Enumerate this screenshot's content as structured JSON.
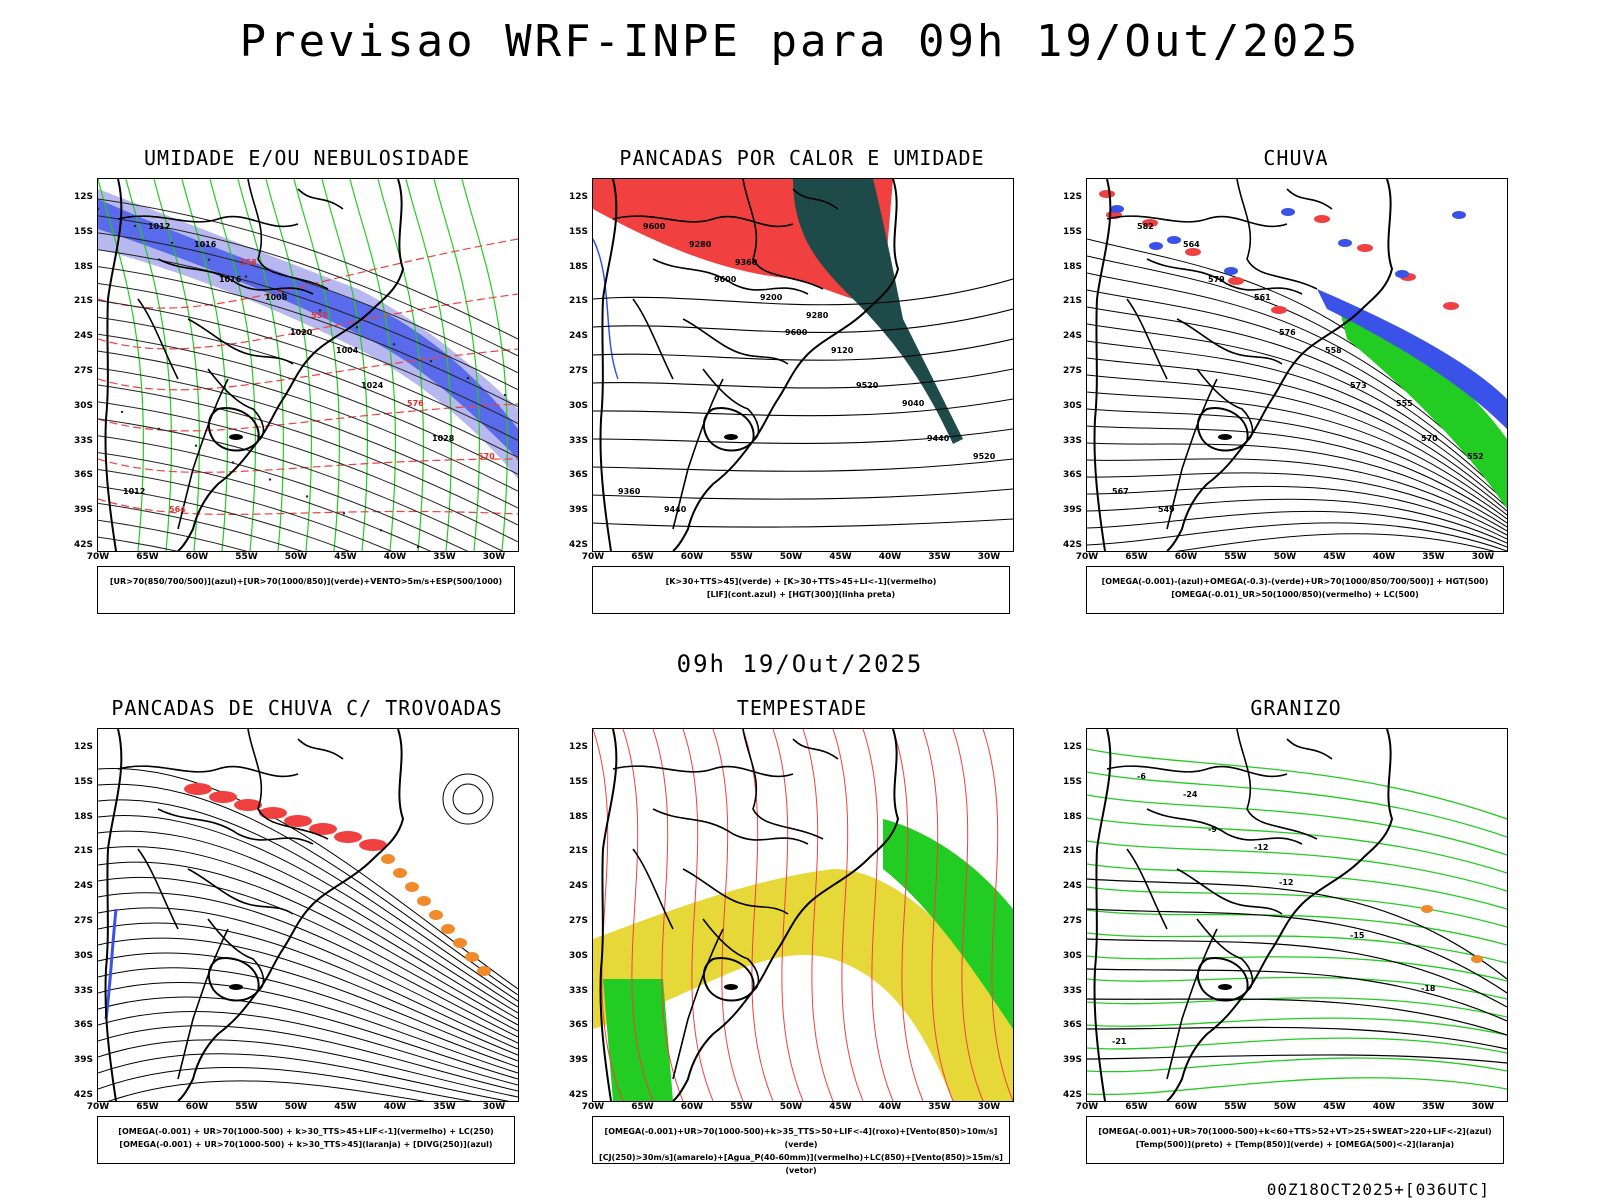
{
  "title": "Previsao WRF-INPE  para 09h 19/Out/2025",
  "mid_title": "09h 19/Out/2025",
  "footer": "00Z18OCT2025+[036UTC]",
  "lat_ticks": [
    "12S",
    "15S",
    "18S",
    "21S",
    "24S",
    "27S",
    "30S",
    "33S",
    "36S",
    "39S",
    "42S"
  ],
  "lon_ticks": [
    "70W",
    "65W",
    "60W",
    "55W",
    "50W",
    "45W",
    "40W",
    "35W",
    "30W"
  ],
  "colors": {
    "blue": "#3a52e8",
    "lavender": "#b8b8f0",
    "green": "#22cc22",
    "red": "#f04040",
    "orange": "#f08a2a",
    "yellow": "#e6d838",
    "darkteal": "#1e4a4a"
  },
  "panels": [
    {
      "title": "UMIDADE E/OU NEBULOSIDADE",
      "legend": [
        "[UR>70(850/700/500)](azul)+[UR>70(1000/850)](verde)+VENTO>5m/s+ESP(500/1000)"
      ],
      "contour_labels": [
        "1012",
        "1016",
        "1020",
        "1024",
        "1028",
        "1012",
        "1016",
        "1008",
        "1004",
        "576",
        "570",
        "564",
        "558",
        "552"
      ]
    },
    {
      "title": "PANCADAS POR CALOR E UMIDADE",
      "legend": [
        "[K>30+TTS>45](verde) + [K>30+TTS>45+LI<-1](vermelho)",
        "[LIF](cont.azul) + [HGT(300)](linha preta)"
      ],
      "contour_labels": [
        "9600",
        "9600",
        "9600",
        "9520",
        "9440",
        "9360",
        "9280",
        "9200",
        "9120",
        "9040",
        "9520",
        "9440",
        "9360",
        "9280"
      ]
    },
    {
      "title": "CHUVA",
      "legend": [
        "[OMEGA(-0.001)-(azul)+OMEGA(-0.3)-(verde)+UR>70(1000/850/700/500)] + HGT(500)",
        "[OMEGA(-0.01)_UR>50(1000/850)(vermelho) + LC(500)"
      ],
      "contour_labels": [
        "582",
        "579",
        "576",
        "573",
        "570",
        "567",
        "564",
        "561",
        "558",
        "555",
        "552",
        "549"
      ]
    },
    {
      "title": "PANCADAS DE CHUVA C/ TROVOADAS",
      "legend": [
        "[OMEGA(-0.001) + UR>70(1000-500) + k>30_TTS>45+LIF<-1](vermelho) + LC(250)",
        "[OMEGA(-0.001) + UR>70(1000-500) + k>30_TTS>45](laranja) + [DIVG(250)](azul)"
      ],
      "contour_labels": []
    },
    {
      "title": "TEMPESTADE",
      "legend": [
        "[OMEGA(-0.001)+UR>70(1000-500)+k>35_TTS>50+LIF<-4](roxo)+[Vento(850)>10m/s](verde)",
        "[CJ(250)>30m/s](amarelo)+[Agua_P(40-60mm)](vermelho)+LC(850)+[Vento(850)>15m/s](vetor)"
      ],
      "contour_labels": []
    },
    {
      "title": "GRANIZO",
      "legend": [
        "[OMEGA(-0.001)+UR>70(1000-500)+k<60+TTS>52+VT>25+SWEAT>220+LIF<-2](azul)",
        "[Temp(500)](preto) + [Temp(850)](verde) + [OMEGA(500)<-2](laranja)"
      ],
      "contour_labels": [
        "-6",
        "-9",
        "-12",
        "-15",
        "-18",
        "-21",
        "-24",
        "-12"
      ]
    }
  ]
}
